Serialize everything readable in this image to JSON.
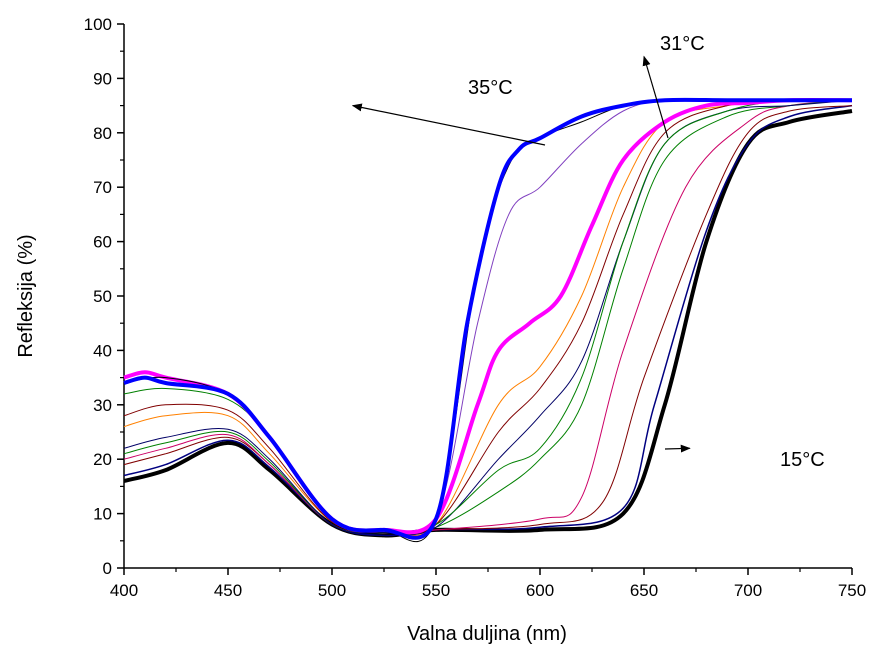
{
  "chart_data": {
    "type": "line",
    "title": "",
    "xlabel": "Valna duljina (nm)",
    "ylabel": "Refleksija (%)",
    "xlim": [
      400,
      750
    ],
    "ylim": [
      0,
      100
    ],
    "x_ticks": [
      400,
      450,
      500,
      550,
      600,
      650,
      700,
      750
    ],
    "y_ticks": [
      0,
      10,
      20,
      30,
      40,
      50,
      60,
      70,
      80,
      90,
      100
    ],
    "grid": false,
    "legend": "none",
    "annotations": [
      {
        "text": "35°C",
        "arrow_to": [
          510,
          85
        ]
      },
      {
        "text": "31°C",
        "arrow_to": [
          650,
          94
        ]
      },
      {
        "text": "15°C",
        "arrow_to": [
          672,
          22
        ]
      }
    ],
    "series": [
      {
        "color": "#000000",
        "width": 4,
        "x": [
          400,
          420,
          450,
          470,
          500,
          525,
          550,
          600,
          640,
          660,
          680,
          700,
          720,
          750
        ],
        "y": [
          16,
          18,
          23,
          18,
          8,
          6,
          7,
          7,
          10,
          30,
          60,
          78,
          82,
          84
        ]
      },
      {
        "color": "#000080",
        "width": 1.5,
        "x": [
          400,
          420,
          450,
          470,
          500,
          525,
          550,
          600,
          640,
          655,
          680,
          700,
          720,
          750
        ],
        "y": [
          17,
          19,
          23.5,
          18.5,
          8,
          6,
          7,
          7.5,
          11,
          30,
          62,
          78,
          83,
          85
        ]
      },
      {
        "color": "#800000",
        "width": 1,
        "x": [
          400,
          420,
          450,
          470,
          500,
          525,
          550,
          600,
          630,
          650,
          680,
          700,
          720,
          750
        ],
        "y": [
          19,
          21,
          24,
          19,
          8,
          6.5,
          7,
          8,
          12,
          35,
          65,
          80,
          84,
          85
        ]
      },
      {
        "color": "#cc0066",
        "width": 1,
        "x": [
          400,
          420,
          450,
          470,
          500,
          525,
          550,
          600,
          620,
          640,
          670,
          700,
          720,
          750
        ],
        "y": [
          20,
          22,
          24.5,
          19,
          8,
          6.5,
          7,
          9,
          13,
          40,
          70,
          82,
          85,
          86
        ]
      },
      {
        "color": "#008000",
        "width": 1,
        "x": [
          400,
          420,
          450,
          470,
          500,
          525,
          550,
          580,
          600,
          620,
          640,
          660,
          690,
          720,
          750
        ],
        "y": [
          21,
          23,
          25,
          19.5,
          8,
          6.5,
          7.5,
          14,
          20,
          30,
          55,
          75,
          83,
          85,
          86
        ]
      },
      {
        "color": "#000066",
        "width": 1,
        "x": [
          400,
          420,
          450,
          470,
          500,
          525,
          550,
          580,
          600,
          620,
          640,
          660,
          690,
          720,
          750
        ],
        "y": [
          22,
          24,
          25.5,
          20,
          8,
          6.5,
          7.5,
          20,
          28,
          38,
          60,
          78,
          84,
          85,
          86
        ]
      },
      {
        "color": "#ff8000",
        "width": 1,
        "x": [
          400,
          420,
          450,
          470,
          500,
          525,
          550,
          580,
          600,
          620,
          640,
          660,
          690,
          720,
          750
        ],
        "y": [
          26,
          28,
          28,
          21,
          8.5,
          7,
          8,
          30,
          37,
          50,
          70,
          82,
          85,
          86,
          86
        ]
      },
      {
        "color": "#800000",
        "width": 1,
        "x": [
          400,
          420,
          450,
          470,
          500,
          525,
          550,
          580,
          600,
          620,
          640,
          660,
          690,
          720,
          750
        ],
        "y": [
          28,
          30,
          29,
          22,
          8.5,
          7,
          8,
          25,
          33,
          45,
          65,
          80,
          85,
          86,
          86
        ]
      },
      {
        "color": "#008000",
        "width": 1,
        "x": [
          400,
          420,
          450,
          470,
          500,
          525,
          550,
          580,
          600,
          620,
          640,
          660,
          690,
          720,
          750
        ],
        "y": [
          32,
          33,
          31,
          24,
          9,
          7,
          8,
          18,
          22,
          35,
          60,
          78,
          84,
          86,
          86
        ]
      },
      {
        "color": "#ff00ff",
        "width": 4,
        "x": [
          400,
          410,
          420,
          450,
          470,
          500,
          525,
          550,
          570,
          580,
          595,
          610,
          625,
          640,
          660,
          680,
          700,
          720,
          750
        ],
        "y": [
          35,
          36,
          35,
          32,
          24,
          9,
          7,
          9,
          30,
          40,
          45,
          50,
          63,
          75,
          82,
          85,
          85.5,
          86,
          86
        ]
      },
      {
        "color": "#8040c0",
        "width": 1,
        "x": [
          400,
          420,
          450,
          470,
          500,
          525,
          550,
          570,
          585,
          600,
          620,
          640,
          660,
          690,
          720,
          750
        ],
        "y": [
          34,
          35,
          32,
          24,
          9,
          7,
          9,
          45,
          65,
          70,
          78,
          84,
          86,
          86,
          86,
          86
        ]
      },
      {
        "color": "#000000",
        "width": 1,
        "x": [
          400,
          420,
          450,
          470,
          500,
          525,
          550,
          570,
          585,
          600,
          620,
          640,
          660,
          690,
          720,
          750
        ],
        "y": [
          34,
          35,
          32,
          24,
          9,
          7,
          9,
          55,
          74,
          79,
          82,
          85,
          86,
          86,
          86,
          86
        ]
      },
      {
        "color": "#0000ff",
        "width": 4,
        "x": [
          400,
          410,
          420,
          450,
          470,
          500,
          525,
          550,
          565,
          580,
          590,
          600,
          620,
          640,
          660,
          690,
          720,
          750
        ],
        "y": [
          34,
          35,
          34,
          32,
          24,
          9,
          7,
          9,
          45,
          70,
          77,
          79,
          83,
          85,
          86,
          86,
          86,
          86
        ]
      }
    ]
  }
}
